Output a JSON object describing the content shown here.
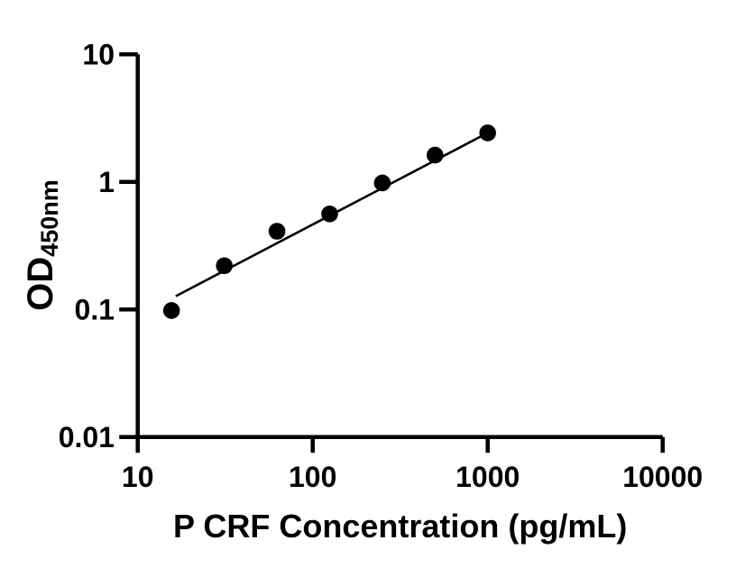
{
  "figure": {
    "background_color": "#ffffff",
    "foreground_color": "#000000"
  },
  "chart_data": {
    "type": "scatter",
    "title": "",
    "xlabel": "P CRF Concentration (pg/mL)",
    "ylabel_main": "OD",
    "ylabel_sub": "450nm",
    "x_scale": "log",
    "y_scale": "log",
    "xlim": [
      10,
      10000
    ],
    "ylim": [
      0.01,
      10
    ],
    "x_ticks": [
      10,
      100,
      1000,
      10000
    ],
    "x_tick_labels": [
      "10",
      "100",
      "1000",
      "10000"
    ],
    "y_ticks": [
      0.01,
      0.1,
      1,
      10
    ],
    "y_tick_labels": [
      "0.01",
      "0.1",
      "1",
      "10"
    ],
    "grid": false,
    "legend": "none",
    "marker_color": "#000000",
    "line_color": "#000000",
    "series": [
      {
        "name": "standard-curve-points",
        "marker": "filled-circle",
        "points": [
          {
            "x": 15.6,
            "y": 0.098
          },
          {
            "x": 31.25,
            "y": 0.22
          },
          {
            "x": 62.5,
            "y": 0.41
          },
          {
            "x": 125,
            "y": 0.56
          },
          {
            "x": 250,
            "y": 0.98
          },
          {
            "x": 500,
            "y": 1.62
          },
          {
            "x": 1000,
            "y": 2.42
          }
        ]
      }
    ],
    "trend_line": {
      "x1": 16.5,
      "y1": 0.127,
      "x2": 1000,
      "y2": 2.42
    }
  }
}
